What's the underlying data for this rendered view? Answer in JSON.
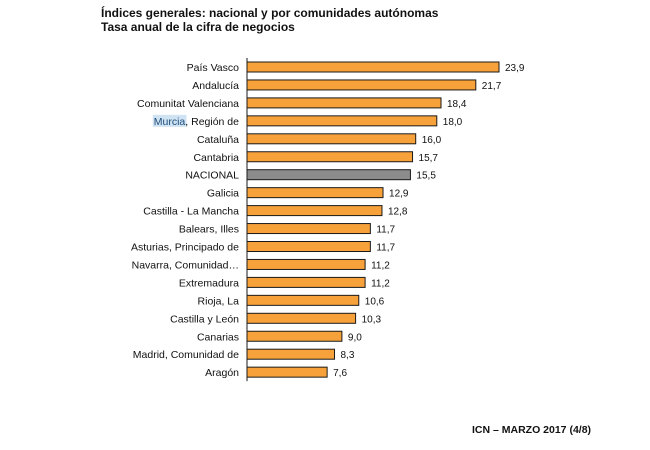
{
  "header": {
    "title": "Índices generales: nacional y por comunidades autónomas",
    "subtitle": "Tasa anual de la cifra de negocios"
  },
  "footer": {
    "text": "ICN – MARZO 2017 (4/8)"
  },
  "colors": {
    "bar": "#f7a13a",
    "national_bar": "#8c8c8c",
    "bar_stroke": "#1a1a1a"
  },
  "chart_data": {
    "type": "bar",
    "orientation": "horizontal",
    "title": "Índices generales: nacional y por comunidades autónomas",
    "subtitle": "Tasa anual de la cifra de negocios",
    "categories": [
      "País Vasco",
      "Andalucía",
      "Comunitat Valenciana",
      "Murcia, Región de",
      "Cataluña",
      "Cantabria",
      "NACIONAL",
      "Galicia",
      "Castilla - La Mancha",
      "Balears, Illes",
      "Asturias, Principado de",
      "Navarra, Comunidad…",
      "Extremadura",
      "Rioja, La",
      "Castilla y León",
      "Canarias",
      "Madrid, Comunidad de",
      "Aragón"
    ],
    "values": [
      23.9,
      21.7,
      18.4,
      18.0,
      16.0,
      15.7,
      15.5,
      12.9,
      12.8,
      11.7,
      11.7,
      11.2,
      11.2,
      10.6,
      10.3,
      9.0,
      8.3,
      7.6
    ],
    "value_labels": [
      "23,9",
      "21,7",
      "18,4",
      "18,0",
      "16,0",
      "15,7",
      "15,5",
      "12,9",
      "12,8",
      "11,7",
      "11,7",
      "11,2",
      "11,2",
      "10,6",
      "10,3",
      "9,0",
      "8,3",
      "7,6"
    ],
    "highlight_category": "NACIONAL",
    "highlighted_text": "Murcia",
    "xlim": [
      0,
      24
    ],
    "grid": false,
    "legend": "none"
  }
}
